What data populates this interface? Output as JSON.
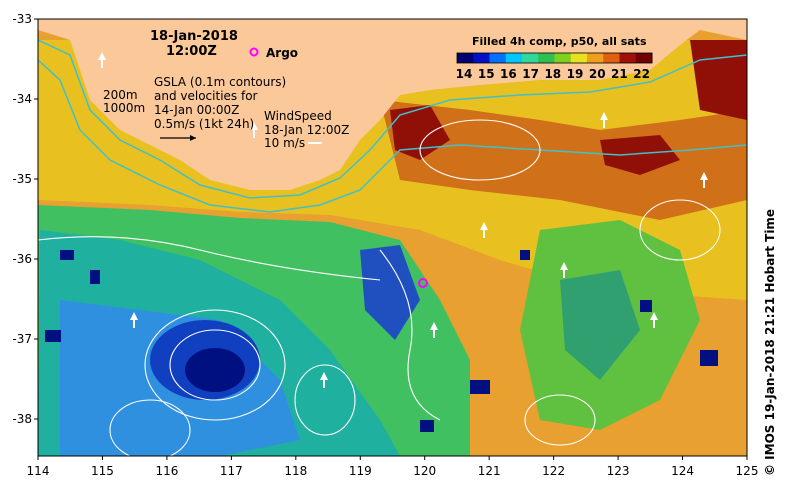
{
  "header": {
    "date": "18-Jan-2018",
    "time": "12:00Z",
    "argo_label": "Argo"
  },
  "legend": {
    "gsla_line1": "GSLA (0.1m contours)",
    "gsla_line2": "and velocities for",
    "gsla_line3": "14-Jan 00:00Z",
    "gsla_scale": "0.5m/s (1kt 24h)",
    "isobath_200": "200m",
    "isobath_1000": "1000m",
    "wind_line1": "WindSpeed",
    "wind_line2": "18-Jan 12:00Z",
    "wind_scale": "10 m/s"
  },
  "colorbar": {
    "title": "Filled 4h comp, p50, all sats",
    "ticks": [
      "14",
      "15",
      "16",
      "17",
      "18",
      "19",
      "20",
      "21",
      "22"
    ],
    "colors": [
      "#000070",
      "#0010c8",
      "#0070ff",
      "#00c8ff",
      "#30d8a0",
      "#30c050",
      "#80d020",
      "#e8e020",
      "#f0a020",
      "#e06010",
      "#a01008",
      "#700000"
    ]
  },
  "axes": {
    "x_ticks": [
      "114",
      "115",
      "116",
      "117",
      "118",
      "119",
      "120",
      "121",
      "122",
      "123",
      "124",
      "125"
    ],
    "y_ticks": [
      "-33",
      "-34",
      "-35",
      "-36",
      "-37",
      "-38"
    ]
  },
  "credit": "© IMOS 19-Jan-2018 21:21 Hobart Time",
  "colors": {
    "land": "#fbc89a",
    "isobath": "#40c0c8",
    "contour": "#ffffff",
    "argo": "#ff00ff"
  }
}
